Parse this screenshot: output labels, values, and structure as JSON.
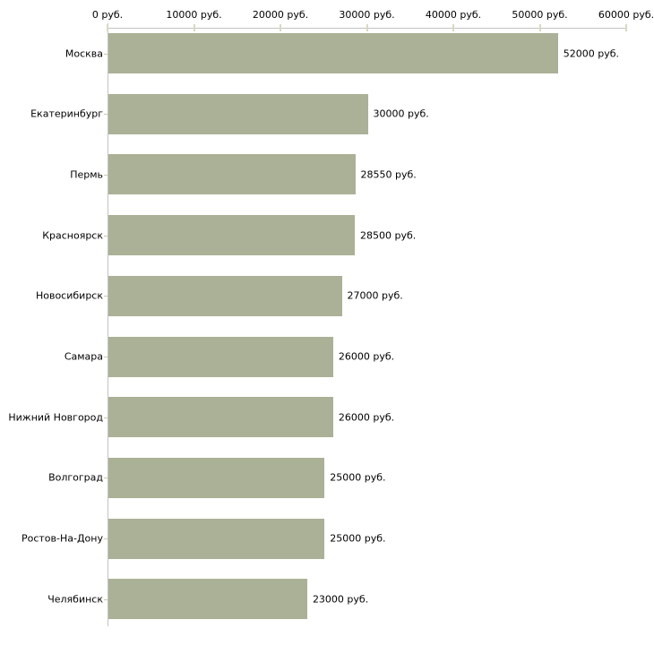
{
  "chart_data": {
    "type": "bar",
    "orientation": "horizontal",
    "title": "",
    "xlabel": "",
    "ylabel": "",
    "unit": "руб.",
    "grid": false,
    "legend": false,
    "categories": [
      "Москва",
      "Екатеринбург",
      "Пермь",
      "Красноярск",
      "Новосибирск",
      "Самара",
      "Нижний Новгород",
      "Волгоград",
      "Ростов-На-Дону",
      "Челябинск"
    ],
    "values": [
      52000,
      30000,
      28550,
      28500,
      27000,
      26000,
      26000,
      25000,
      25000,
      23000
    ],
    "value_labels": [
      "52000 руб.",
      "30000 руб.",
      "28550 руб.",
      "28500 руб.",
      "27000 руб.",
      "26000 руб.",
      "26000 руб.",
      "25000 руб.",
      "25000 руб.",
      "23000 руб."
    ],
    "x_axis": {
      "position": "top",
      "range": [
        0,
        60000
      ],
      "ticks": [
        0,
        10000,
        20000,
        30000,
        40000,
        50000,
        60000
      ],
      "tick_labels": [
        "0 руб.",
        "10000 руб.",
        "20000 руб.",
        "30000 руб.",
        "40000 руб.",
        "50000 руб.",
        "60000 руб."
      ]
    },
    "colors": {
      "bar": "#abb196",
      "axis_line": "#c2c2c2",
      "axis_tick": "#d9d9c0",
      "category_tick": "#c9cab0",
      "text": "#000000",
      "background": "#ffffff"
    }
  }
}
